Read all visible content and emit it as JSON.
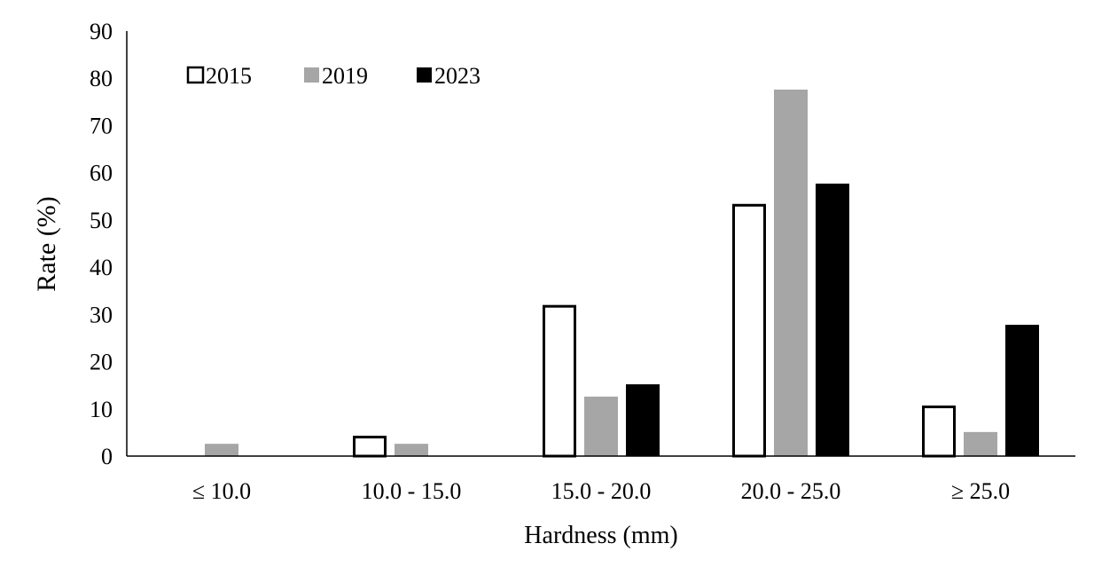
{
  "chart_data": {
    "type": "bar",
    "title": "",
    "xlabel": "Hardness (mm)",
    "ylabel": "Rate (%)",
    "ylim": [
      0,
      90
    ],
    "yticks": [
      "0",
      "10",
      "20",
      "30",
      "40",
      "50",
      "60",
      "70",
      "80",
      "90"
    ],
    "categories": [
      "≤ 10.0",
      "10.0 - 15.0",
      "15.0 - 20.0",
      "20.0 - 25.0",
      "≥ 25.0"
    ],
    "series": [
      {
        "name": "2015",
        "fill": "#ffffff",
        "stroke": "#000000",
        "values": [
          0,
          4.3,
          32.0,
          53.4,
          10.7
        ]
      },
      {
        "name": "2019",
        "fill": "#a6a6a6",
        "stroke": "none",
        "values": [
          2.6,
          2.6,
          12.6,
          77.6,
          5.1
        ]
      },
      {
        "name": "2023",
        "fill": "#000000",
        "stroke": "none",
        "values": [
          0,
          0,
          15.2,
          57.7,
          27.8
        ]
      }
    ],
    "legend_position": "top-left",
    "grid": false
  }
}
